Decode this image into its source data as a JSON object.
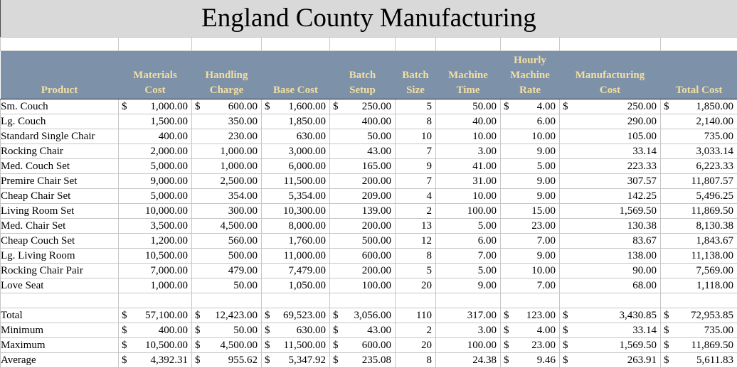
{
  "title": "England County Manufacturing",
  "colors": {
    "title_bg": "#d9d9d9",
    "header_bg": "#7d91a8",
    "header_text": "#f4dfa2",
    "gridline": "#c6c6c6",
    "body_text": "#000000"
  },
  "currency_symbol": "$",
  "table": {
    "columns": [
      {
        "key": "product",
        "label": "Product",
        "accounting": false
      },
      {
        "key": "materials_cost",
        "label": "Materials Cost",
        "accounting": true
      },
      {
        "key": "handling_charge",
        "label": "Handling Charge",
        "accounting": true
      },
      {
        "key": "base_cost",
        "label": "Base Cost",
        "accounting": true
      },
      {
        "key": "batch_setup",
        "label": "Batch Setup",
        "accounting": true
      },
      {
        "key": "batch_size",
        "label": "Batch Size",
        "accounting": false
      },
      {
        "key": "machine_time",
        "label": "Machine Time",
        "accounting": false
      },
      {
        "key": "hourly_machine_rate",
        "label": "Hourly Machine Rate",
        "accounting": true
      },
      {
        "key": "manufacturing_cost",
        "label": "Manufacturing Cost",
        "accounting": true
      },
      {
        "key": "total_cost",
        "label": "Total Cost",
        "accounting": true
      }
    ],
    "rows": [
      {
        "label": "Sm. Couch",
        "values": [
          "1,000.00",
          "600.00",
          "1,600.00",
          "250.00",
          "5",
          "50.00",
          "4.00",
          "250.00",
          "1,850.00"
        ]
      },
      {
        "label": "Lg. Couch",
        "values": [
          "1,500.00",
          "350.00",
          "1,850.00",
          "400.00",
          "8",
          "40.00",
          "6.00",
          "290.00",
          "2,140.00"
        ]
      },
      {
        "label": "Standard Single Chair",
        "values": [
          "400.00",
          "230.00",
          "630.00",
          "50.00",
          "10",
          "10.00",
          "10.00",
          "105.00",
          "735.00"
        ]
      },
      {
        "label": "Rocking Chair",
        "values": [
          "2,000.00",
          "1,000.00",
          "3,000.00",
          "43.00",
          "7",
          "3.00",
          "9.00",
          "33.14",
          "3,033.14"
        ]
      },
      {
        "label": "Med. Couch Set",
        "values": [
          "5,000.00",
          "1,000.00",
          "6,000.00",
          "165.00",
          "9",
          "41.00",
          "5.00",
          "223.33",
          "6,223.33"
        ]
      },
      {
        "label": "Premire Chair Set",
        "values": [
          "9,000.00",
          "2,500.00",
          "11,500.00",
          "200.00",
          "7",
          "31.00",
          "9.00",
          "307.57",
          "11,807.57"
        ]
      },
      {
        "label": "Cheap Chair Set",
        "values": [
          "5,000.00",
          "354.00",
          "5,354.00",
          "209.00",
          "4",
          "10.00",
          "9.00",
          "142.25",
          "5,496.25"
        ]
      },
      {
        "label": "Living Room Set",
        "values": [
          "10,000.00",
          "300.00",
          "10,300.00",
          "139.00",
          "2",
          "100.00",
          "15.00",
          "1,569.50",
          "11,869.50"
        ]
      },
      {
        "label": "Med. Chair Set",
        "values": [
          "3,500.00",
          "4,500.00",
          "8,000.00",
          "200.00",
          "13",
          "5.00",
          "23.00",
          "130.38",
          "8,130.38"
        ]
      },
      {
        "label": "Cheap Couch Set",
        "values": [
          "1,200.00",
          "560.00",
          "1,760.00",
          "500.00",
          "12",
          "6.00",
          "7.00",
          "83.67",
          "1,843.67"
        ]
      },
      {
        "label": "Lg. Living Room",
        "values": [
          "10,500.00",
          "500.00",
          "11,000.00",
          "600.00",
          "8",
          "7.00",
          "9.00",
          "138.00",
          "11,138.00"
        ]
      },
      {
        "label": "Rocking Chair Pair",
        "values": [
          "7,000.00",
          "479.00",
          "7,479.00",
          "200.00",
          "5",
          "5.00",
          "10.00",
          "90.00",
          "7,569.00"
        ]
      },
      {
        "label": "Love Seat",
        "values": [
          "1,000.00",
          "50.00",
          "1,050.00",
          "100.00",
          "20",
          "9.00",
          "7.00",
          "68.00",
          "1,118.00"
        ]
      }
    ],
    "summary": [
      {
        "label": "Total",
        "values": [
          "57,100.00",
          "12,423.00",
          "69,523.00",
          "3,056.00",
          "110",
          "317.00",
          "123.00",
          "3,430.85",
          "72,953.85"
        ]
      },
      {
        "label": "Minimum",
        "values": [
          "400.00",
          "50.00",
          "630.00",
          "43.00",
          "2",
          "3.00",
          "4.00",
          "33.14",
          "735.00"
        ]
      },
      {
        "label": "Maximum",
        "values": [
          "10,500.00",
          "4,500.00",
          "11,500.00",
          "600.00",
          "20",
          "100.00",
          "23.00",
          "1,569.50",
          "11,869.50"
        ]
      },
      {
        "label": "Average",
        "values": [
          "4,392.31",
          "955.62",
          "5,347.92",
          "235.08",
          "8",
          "24.38",
          "9.46",
          "263.91",
          "5,611.83"
        ]
      }
    ]
  }
}
